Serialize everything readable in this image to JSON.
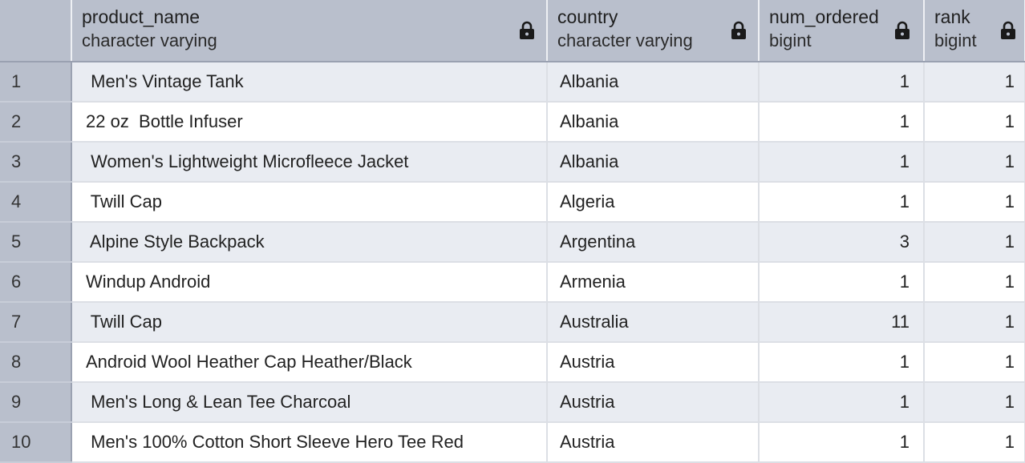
{
  "columns": [
    {
      "name": "product_name",
      "type": "character varying",
      "icon": "lock-icon"
    },
    {
      "name": "country",
      "type": "character varying",
      "icon": "lock-icon"
    },
    {
      "name": "num_ordered",
      "type": "bigint",
      "icon": "lock-icon"
    },
    {
      "name": "rank",
      "type": "bigint",
      "icon": "lock-icon"
    }
  ],
  "rows": [
    {
      "index": "1",
      "product_name": " Men's Vintage Tank",
      "country": "Albania",
      "num_ordered": "1",
      "rank": "1"
    },
    {
      "index": "2",
      "product_name": "22 oz  Bottle Infuser",
      "country": "Albania",
      "num_ordered": "1",
      "rank": "1"
    },
    {
      "index": "3",
      "product_name": " Women's Lightweight Microfleece Jacket",
      "country": "Albania",
      "num_ordered": "1",
      "rank": "1"
    },
    {
      "index": "4",
      "product_name": " Twill Cap",
      "country": "Algeria",
      "num_ordered": "1",
      "rank": "1"
    },
    {
      "index": "5",
      "product_name": " Alpine Style Backpack",
      "country": "Argentina",
      "num_ordered": "3",
      "rank": "1"
    },
    {
      "index": "6",
      "product_name": "Windup Android",
      "country": "Armenia",
      "num_ordered": "1",
      "rank": "1"
    },
    {
      "index": "7",
      "product_name": " Twill Cap",
      "country": "Australia",
      "num_ordered": "11",
      "rank": "1"
    },
    {
      "index": "8",
      "product_name": "Android Wool Heather Cap Heather/Black",
      "country": "Austria",
      "num_ordered": "1",
      "rank": "1"
    },
    {
      "index": "9",
      "product_name": " Men's Long & Lean Tee Charcoal",
      "country": "Austria",
      "num_ordered": "1",
      "rank": "1"
    },
    {
      "index": "10",
      "product_name": " Men's 100% Cotton Short Sleeve Hero Tee Red",
      "country": "Austria",
      "num_ordered": "1",
      "rank": "1"
    }
  ],
  "colors": {
    "header_bg": "#b9bfcc",
    "row_odd_bg": "#e9ecf2",
    "row_even_bg": "#ffffff"
  }
}
